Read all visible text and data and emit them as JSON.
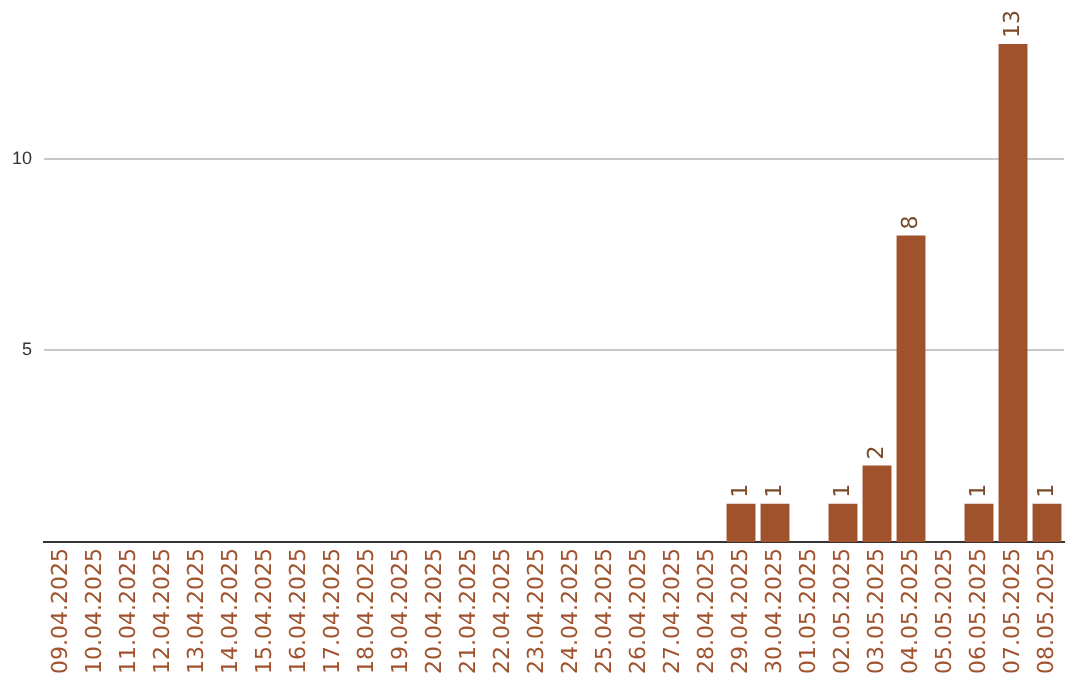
{
  "chart_data": {
    "type": "bar",
    "categories": [
      "09.04.2025",
      "10.04.2025",
      "11.04.2025",
      "12.04.2025",
      "13.04.2025",
      "14.04.2025",
      "15.04.2025",
      "16.04.2025",
      "17.04.2025",
      "18.04.2025",
      "19.04.2025",
      "20.04.2025",
      "21.04.2025",
      "22.04.2025",
      "23.04.2025",
      "24.04.2025",
      "25.04.2025",
      "26.04.2025",
      "27.04.2025",
      "28.04.2025",
      "29.04.2025",
      "30.04.2025",
      "01.05.2025",
      "02.05.2025",
      "03.05.2025",
      "04.05.2025",
      "05.05.2025",
      "06.05.2025",
      "07.05.2025",
      "08.05.2025"
    ],
    "values": [
      0,
      0,
      0,
      0,
      0,
      0,
      0,
      0,
      0,
      0,
      0,
      0,
      0,
      0,
      0,
      0,
      0,
      0,
      0,
      0,
      1,
      1,
      0,
      1,
      2,
      8,
      0,
      1,
      13,
      1
    ],
    "value_labels": [
      null,
      null,
      null,
      null,
      null,
      null,
      null,
      null,
      null,
      null,
      null,
      null,
      null,
      null,
      null,
      null,
      null,
      null,
      null,
      null,
      "1",
      "1",
      null,
      "1",
      "2",
      "8",
      null,
      "1",
      "13",
      "1"
    ],
    "color": "#a0522d",
    "ylim": [
      0,
      13
    ],
    "yticks": [
      5,
      10
    ],
    "grid": "y",
    "legend": false
  }
}
